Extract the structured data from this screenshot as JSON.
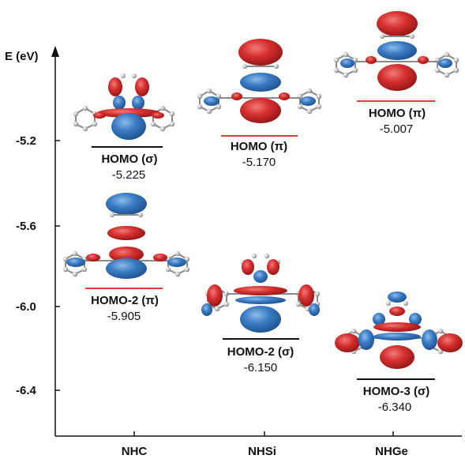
{
  "axis": {
    "title": "E (eV)",
    "ticks": [
      "-5.2",
      "-5.6",
      "-6.0",
      "-6.4"
    ]
  },
  "categories": [
    "NHC",
    "NHSi",
    "NHGe"
  ],
  "levels": [
    {
      "name": "HOMO (σ)",
      "energy": "-5.225"
    },
    {
      "name": "HOMO-2 (π)",
      "energy": "-5.905"
    },
    {
      "name": "HOMO (π)",
      "energy": "-5.170"
    },
    {
      "name": "HOMO-2 (σ)",
      "energy": "-6.150"
    },
    {
      "name": "HOMO (π)",
      "energy": "-5.007"
    },
    {
      "name": "HOMO-3 (σ)",
      "energy": "-6.340"
    }
  ],
  "colors": {
    "sigma_line": "#111111",
    "pi_line": "#e23b3b",
    "lobe_red": "#d6302f",
    "lobe_blue": "#3a7cc4"
  }
}
